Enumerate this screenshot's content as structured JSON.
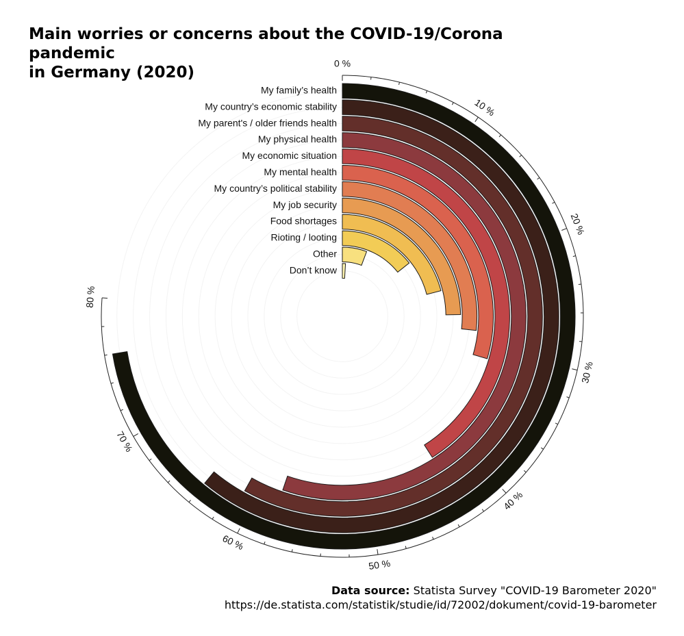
{
  "title": {
    "line1": "Main worries or concerns about the COVID-19/Corona pandemic",
    "line2": "in Germany (2020)"
  },
  "source": {
    "label": "Data source:",
    "text": "Statista Survey \"COVID-19 Barometer 2020\"",
    "url": "https://de.statista.com/statistik/studie/id/72002/dokument/covid-19-barometer"
  },
  "chart_data": {
    "type": "bar",
    "subtype": "radial",
    "categories": [
      "My family’s health",
      "My country’s economic stability",
      "My parent's / older friends health",
      "My physical health",
      "My economic situation",
      "My mental health",
      "My country’s political stability",
      "My job security",
      "Food shortages",
      "Rioting / looting",
      "Other",
      "Don’t know"
    ],
    "values": [
      76,
      64,
      61,
      58,
      43,
      31,
      28,
      26,
      22,
      15,
      6,
      1
    ],
    "value_unit": "%",
    "axis_range": [
      0,
      80
    ],
    "tick_values": [
      0,
      10,
      20,
      30,
      40,
      50,
      60,
      70,
      80
    ],
    "tick_labels": [
      "0 %",
      "10 %",
      "20 %",
      "30 %",
      "40 %",
      "50 %",
      "60 %",
      "70 %",
      "80 %"
    ],
    "colors": [
      "#14140a",
      "#3b2019",
      "#632f2a",
      "#8c3a3e",
      "#c04547",
      "#da624e",
      "#e17d52",
      "#e79b52",
      "#f0bd52",
      "#f2cc56",
      "#f8e07f",
      "#fdf3b0"
    ],
    "outline_color": "#1a1a1a",
    "grid": true
  }
}
